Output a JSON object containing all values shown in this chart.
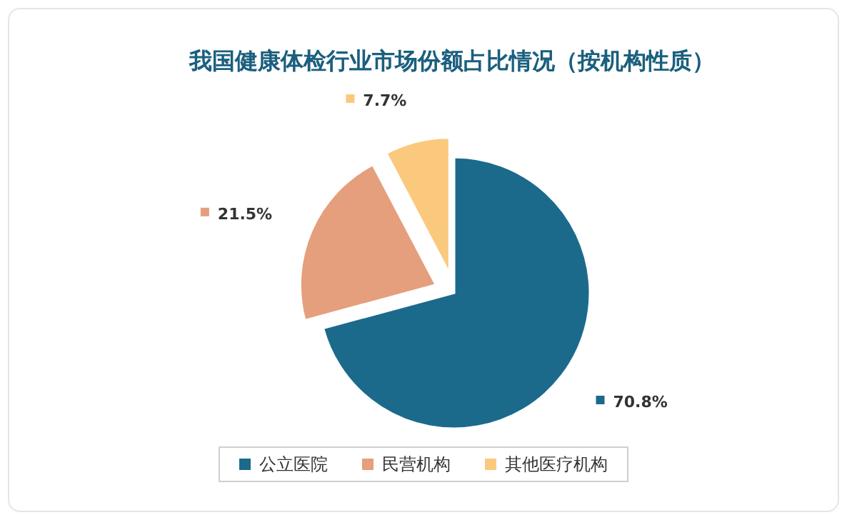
{
  "chart_data": {
    "type": "pie",
    "title": "我国健康体检行业市场份额占比情况（按机构性质）",
    "categories": [
      "公立医院",
      "民营机构",
      "其他医疗机构"
    ],
    "values": [
      70.8,
      21.5,
      7.7
    ],
    "colors": [
      "#1b6a8c",
      "#e59f7d",
      "#fbc97d"
    ],
    "value_labels": [
      "70.8%",
      "21.5%",
      "7.7%"
    ],
    "legend": "bottom"
  }
}
